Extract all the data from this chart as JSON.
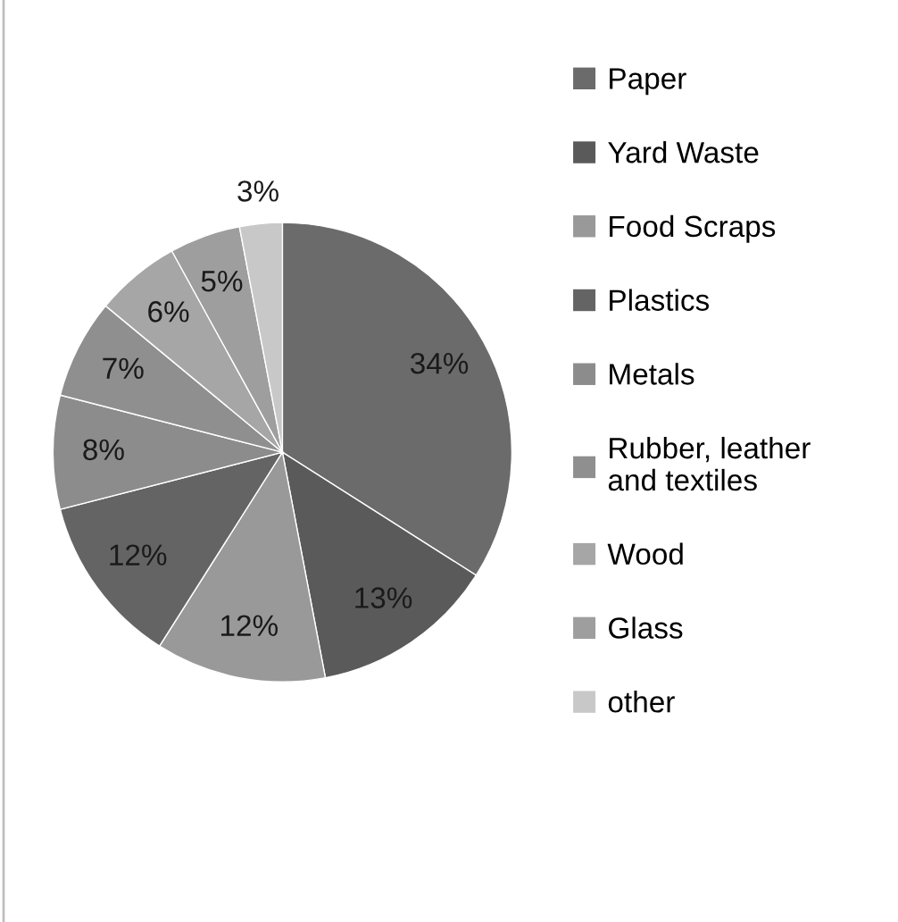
{
  "chart_data": {
    "type": "pie",
    "categories": [
      "Paper",
      "Yard Waste",
      "Food Scraps",
      "Plastics",
      "Metals",
      "Rubber, leather\nand textiles",
      "Wood",
      "Glass",
      "other"
    ],
    "values": [
      34,
      13,
      12,
      12,
      8,
      7,
      6,
      5,
      3
    ],
    "colors": [
      "#6b6b6b",
      "#5a5a5a",
      "#999999",
      "#646464",
      "#8c8c8c",
      "#8f8f8f",
      "#a6a6a6",
      "#9e9e9e",
      "#c8c8c8"
    ],
    "value_labels": [
      "34%",
      "13%",
      "12%",
      "12%",
      "8%",
      "7%",
      "6%",
      "5%",
      "3%"
    ],
    "legend": "right"
  }
}
